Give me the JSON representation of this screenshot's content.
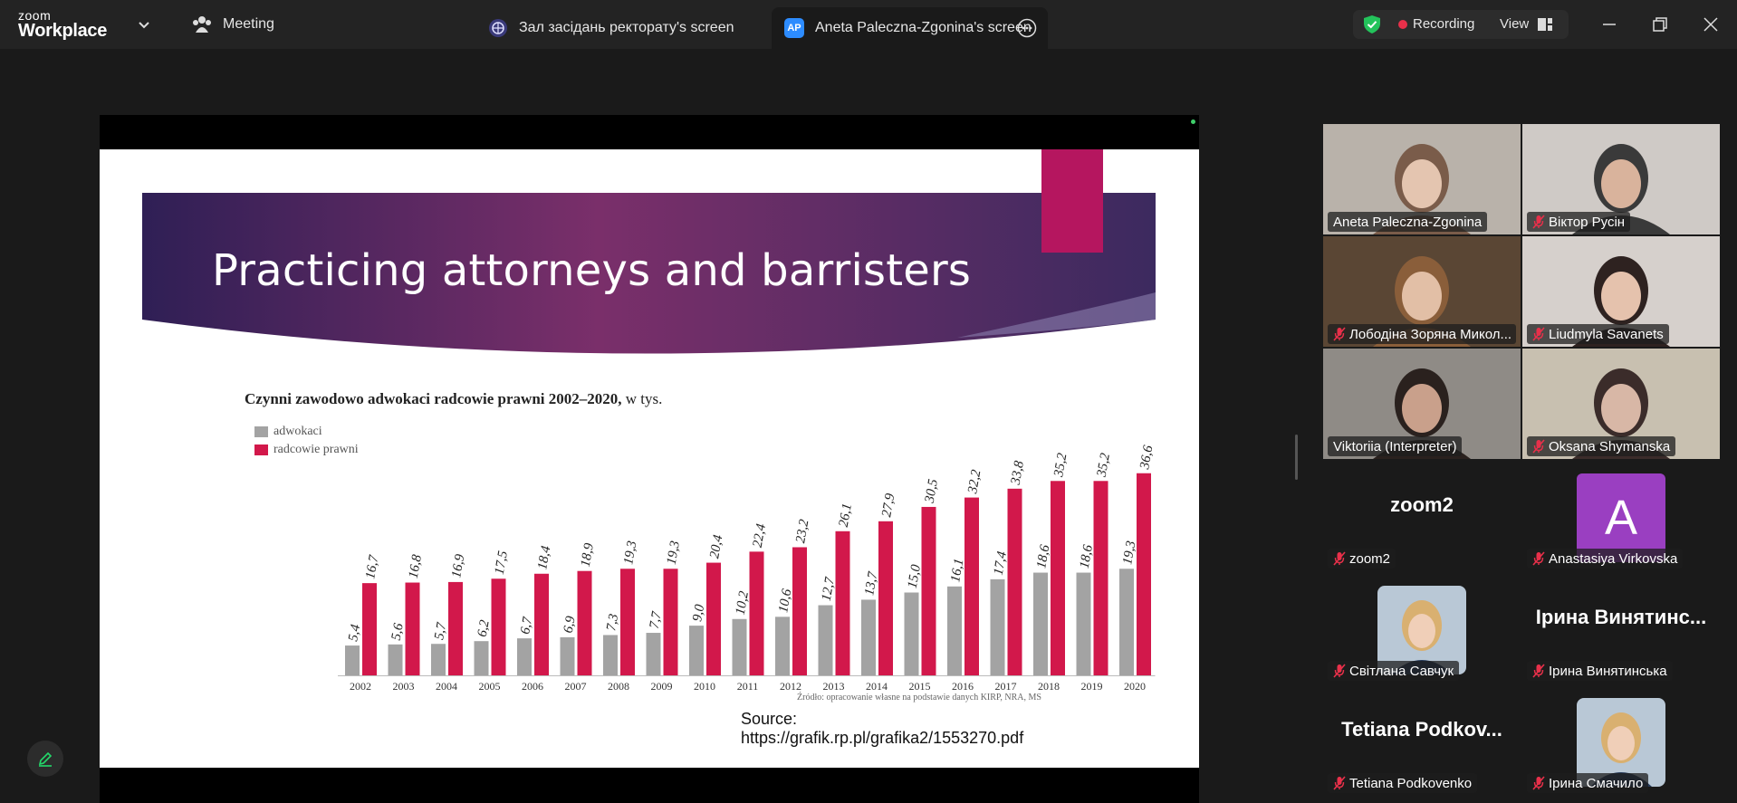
{
  "app": {
    "brand_small": "zoom",
    "brand_big": "Workplace"
  },
  "tabs": {
    "meeting_label": "Meeting",
    "tab1_label": "Зал засідань ректорату's screen",
    "tab2_badge": "AP",
    "tab2_label": "Aneta Paleczna-Zgonina's screen"
  },
  "status": {
    "recording_label": "Recording",
    "view_label": "View"
  },
  "colors": {
    "grey_series": "#a3a3a3",
    "red_series": "#d2184b",
    "accent": "#b5165f",
    "active_speaker": "#23d96a"
  },
  "slide": {
    "title": "Practicing attorneys and barristers",
    "source_line1": "Source:",
    "source_line2": "https://grafik.rp.pl/grafika2/1553270.pdf"
  },
  "chart_data": {
    "type": "bar",
    "title_bold": "Czynni zawodowo adwokaci radcowie prawni 2002–2020,",
    "title_rest": " w tys.",
    "categories": [
      "2002",
      "2003",
      "2004",
      "2005",
      "2006",
      "2007",
      "2008",
      "2009",
      "2010",
      "2011",
      "2012",
      "2013",
      "2014",
      "2015",
      "2016",
      "2017",
      "2018",
      "2019",
      "2020"
    ],
    "series": [
      {
        "name": "adwokaci",
        "values": [
          5.4,
          5.6,
          5.7,
          6.2,
          6.7,
          6.9,
          7.3,
          7.7,
          9.0,
          10.2,
          10.6,
          12.7,
          13.7,
          15.0,
          16.1,
          17.4,
          18.6,
          18.6,
          19.3
        ],
        "labels": [
          "5,4",
          "5,6",
          "5,7",
          "6,2",
          "6,7",
          "6,9",
          "7,3",
          "7,7",
          "9,0",
          "10,2",
          "10,6",
          "12,7",
          "13,7",
          "15,0",
          "16,1",
          "17,4",
          "18,6",
          "18,6",
          "19,3"
        ]
      },
      {
        "name": "radcowie prawni",
        "values": [
          16.7,
          16.8,
          16.9,
          17.5,
          18.4,
          18.9,
          19.3,
          19.3,
          20.4,
          22.4,
          23.2,
          26.1,
          27.9,
          30.5,
          32.2,
          33.8,
          35.2,
          35.2,
          36.6
        ],
        "labels": [
          "16,7",
          "16,8",
          "16,9",
          "17,5",
          "18,4",
          "18,9",
          "19,3",
          "19,3",
          "20,4",
          "22,4",
          "23,2",
          "26,1",
          "27,9",
          "30,5",
          "32,2",
          "33,8",
          "35,2",
          "35,2",
          "36,6"
        ]
      }
    ],
    "source_note": "Źródło: opracowanie własne na podstawie danych KIRP, NRA, MS",
    "legend_position": "top-left",
    "grid": false
  },
  "participants": [
    {
      "name": "Aneta Paleczna-Zgonina",
      "muted": false,
      "type": "video",
      "active": true
    },
    {
      "name": "Віктор Русін",
      "muted": true,
      "type": "video"
    },
    {
      "name": "Лободіна Зоряна Микол...",
      "muted": true,
      "type": "video"
    },
    {
      "name": "Liudmyla Savanets",
      "muted": true,
      "type": "video"
    },
    {
      "name": "Viktoriia (Interpreter)",
      "muted": false,
      "type": "video"
    },
    {
      "name": "Oksana Shymanska",
      "muted": true,
      "type": "video"
    },
    {
      "name": "zoom2",
      "big_name": "zoom2",
      "muted": true,
      "type": "name"
    },
    {
      "name": "Anastasiya Virkovska",
      "avatar_letter": "A",
      "muted": true,
      "type": "avatar"
    },
    {
      "name": "Світлана Савчук",
      "muted": true,
      "type": "photo"
    },
    {
      "name": "Ірина Винятинська",
      "big_name": "Ірина Винятинс...",
      "muted": true,
      "type": "name"
    },
    {
      "name": "Tetiana Podkovenko",
      "big_name": "Tetiana Podkov...",
      "muted": true,
      "type": "name"
    },
    {
      "name": "Ірина Смачило",
      "muted": true,
      "type": "photo"
    }
  ]
}
